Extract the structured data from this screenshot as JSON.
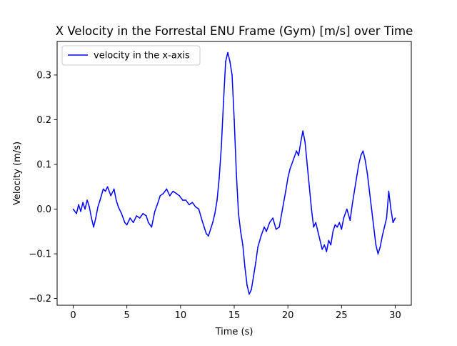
{
  "chart_data": {
    "type": "line",
    "title": "X Velocity in the Forrestal ENU Frame (Gym) [m/s] over Time",
    "xlabel": "Time (s)",
    "ylabel": "Velocity (m/s)",
    "xlim": [
      -1.5,
      31.5
    ],
    "ylim": [
      -0.215,
      0.375
    ],
    "xticks": [
      0,
      5,
      10,
      15,
      20,
      25,
      30
    ],
    "xtick_labels": [
      "0",
      "5",
      "10",
      "15",
      "20",
      "25",
      "30"
    ],
    "yticks": [
      -0.2,
      -0.1,
      0.0,
      0.1,
      0.2,
      0.3
    ],
    "ytick_labels": [
      "−0.2",
      "−0.1",
      "0.0",
      "0.1",
      "0.2",
      "0.3"
    ],
    "grid": false,
    "legend_position": "top-left",
    "series": [
      {
        "name": "velocity in the x-axis",
        "color": "#0000ff",
        "x": [
          0,
          0.3,
          0.5,
          0.7,
          0.9,
          1.1,
          1.3,
          1.5,
          1.7,
          1.9,
          2.1,
          2.3,
          2.5,
          2.8,
          3.0,
          3.2,
          3.5,
          3.8,
          4.0,
          4.2,
          4.5,
          4.8,
          5.0,
          5.3,
          5.6,
          5.9,
          6.2,
          6.5,
          6.8,
          7.0,
          7.3,
          7.6,
          7.9,
          8.1,
          8.4,
          8.7,
          9.0,
          9.3,
          9.6,
          9.9,
          10.2,
          10.5,
          10.8,
          11.1,
          11.4,
          11.7,
          12.0,
          12.2,
          12.4,
          12.6,
          12.8,
          13.0,
          13.2,
          13.4,
          13.6,
          13.8,
          14.0,
          14.2,
          14.4,
          14.6,
          14.8,
          15.0,
          15.2,
          15.4,
          15.6,
          15.8,
          16.0,
          16.2,
          16.4,
          16.6,
          16.8,
          17.0,
          17.2,
          17.5,
          17.8,
          18.0,
          18.3,
          18.6,
          18.9,
          19.2,
          19.5,
          19.8,
          20.0,
          20.2,
          20.5,
          20.8,
          21.0,
          21.2,
          21.4,
          21.6,
          21.8,
          22.0,
          22.2,
          22.4,
          22.6,
          22.8,
          23.0,
          23.2,
          23.4,
          23.6,
          23.8,
          24.0,
          24.2,
          24.4,
          24.6,
          24.8,
          25.0,
          25.2,
          25.5,
          25.8,
          26.0,
          26.2,
          26.4,
          26.6,
          26.8,
          27.0,
          27.2,
          27.4,
          27.6,
          27.8,
          28.0,
          28.2,
          28.4,
          28.6,
          28.8,
          29.0,
          29.2,
          29.4,
          29.6,
          29.8,
          30.0
        ],
        "y": [
          0.0,
          -0.01,
          0.01,
          -0.005,
          0.015,
          0.0,
          0.02,
          0.005,
          -0.02,
          -0.04,
          -0.02,
          0.005,
          0.02,
          0.045,
          0.04,
          0.05,
          0.03,
          0.045,
          0.02,
          0.005,
          -0.01,
          -0.03,
          -0.035,
          -0.02,
          -0.03,
          -0.015,
          -0.02,
          -0.01,
          -0.015,
          -0.03,
          -0.04,
          -0.005,
          0.015,
          0.03,
          0.035,
          0.045,
          0.03,
          0.04,
          0.035,
          0.03,
          0.02,
          0.02,
          0.01,
          0.015,
          0.005,
          0.0,
          -0.025,
          -0.04,
          -0.055,
          -0.06,
          -0.045,
          -0.03,
          -0.01,
          0.02,
          0.07,
          0.14,
          0.24,
          0.33,
          0.35,
          0.33,
          0.3,
          0.2,
          0.08,
          -0.01,
          -0.05,
          -0.08,
          -0.13,
          -0.17,
          -0.19,
          -0.18,
          -0.15,
          -0.12,
          -0.085,
          -0.06,
          -0.04,
          -0.05,
          -0.03,
          -0.02,
          -0.045,
          -0.04,
          0.0,
          0.04,
          0.07,
          0.09,
          0.11,
          0.13,
          0.12,
          0.15,
          0.175,
          0.15,
          0.1,
          0.05,
          0.0,
          -0.04,
          -0.03,
          -0.05,
          -0.07,
          -0.09,
          -0.08,
          -0.095,
          -0.07,
          -0.08,
          -0.05,
          -0.035,
          -0.04,
          -0.03,
          -0.045,
          -0.02,
          0.0,
          -0.025,
          0.01,
          0.04,
          0.07,
          0.1,
          0.12,
          0.13,
          0.11,
          0.08,
          0.04,
          0.0,
          -0.04,
          -0.08,
          -0.1,
          -0.085,
          -0.06,
          -0.04,
          -0.02,
          0.04,
          0.0,
          -0.03,
          -0.02
        ]
      }
    ]
  }
}
